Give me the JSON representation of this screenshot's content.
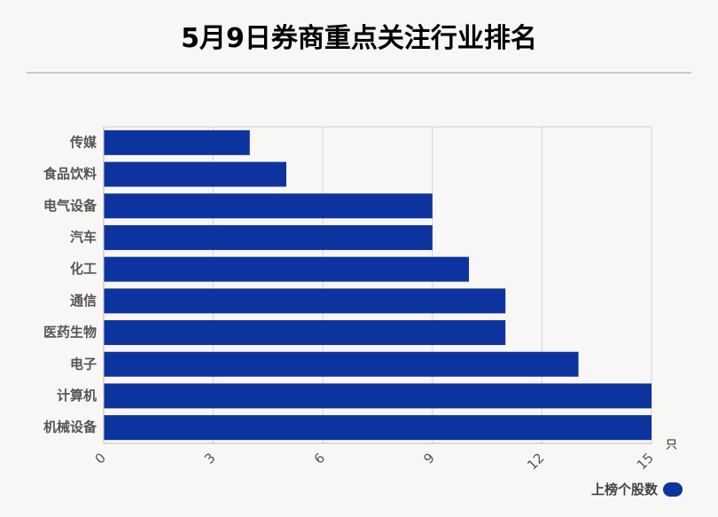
{
  "title": "5月9日券商重点关注行业排名",
  "chart_data": {
    "type": "bar",
    "orientation": "horizontal",
    "categories": [
      "传媒",
      "食品饮料",
      "电气设备",
      "汽车",
      "化工",
      "通信",
      "医药生物",
      "电子",
      "计算机",
      "机械设备"
    ],
    "series": [
      {
        "name": "上榜个股数",
        "values": [
          4,
          5,
          9,
          9,
          10,
          11,
          11,
          13,
          15,
          15
        ]
      }
    ],
    "x_ticks": [
      "0",
      "3",
      "6",
      "9",
      "12",
      "15"
    ],
    "xlim": [
      0,
      15
    ],
    "x_unit": "只",
    "grid": true,
    "legend_position": "bottom-right",
    "bar_color": "#0d349e"
  }
}
